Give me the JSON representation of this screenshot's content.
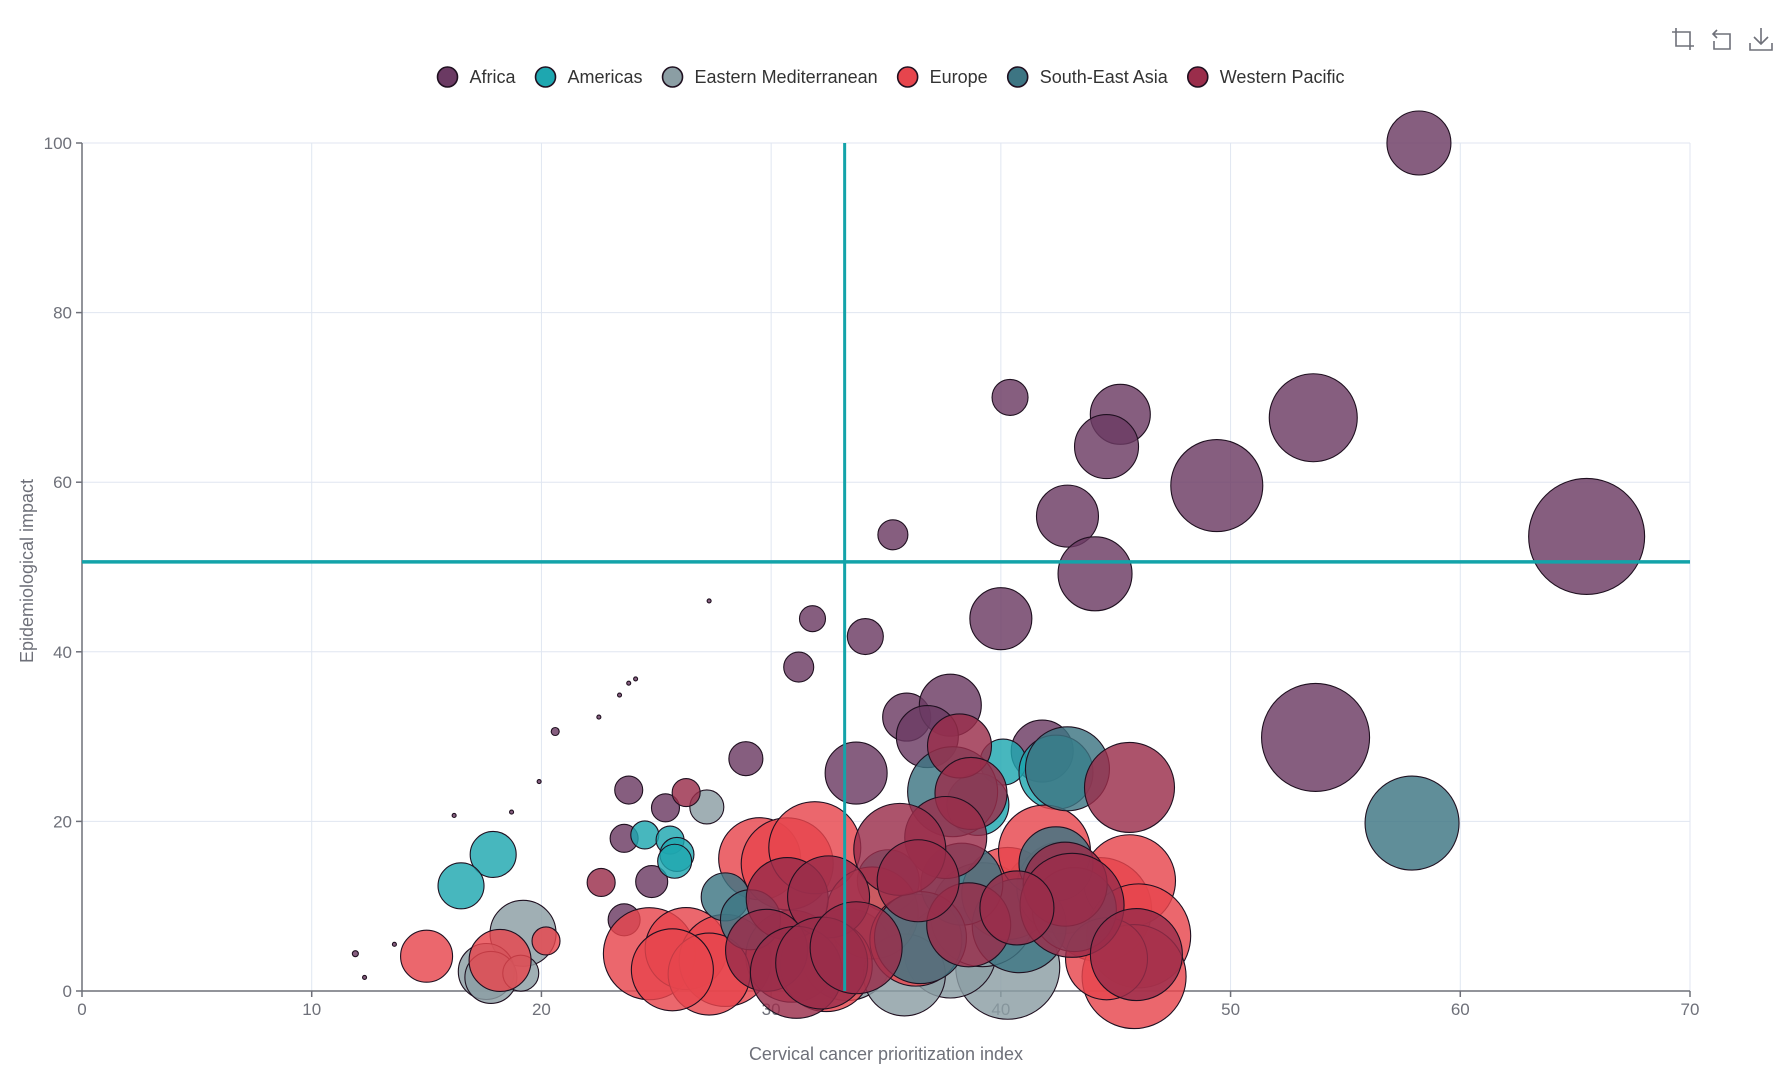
{
  "toolbox": {
    "zoom_icon": "zoom-icon",
    "restore_icon": "restore-icon",
    "download_icon": "download-icon"
  },
  "chart_data": {
    "type": "scatter",
    "xlabel": "Cervical cancer prioritization index",
    "ylabel": "Epidemiological impact",
    "xlim": [
      0,
      70
    ],
    "ylim": [
      0,
      100
    ],
    "xticks": [
      0,
      10,
      20,
      30,
      40,
      50,
      60,
      70
    ],
    "yticks": [
      0,
      20,
      40,
      60,
      80,
      100
    ],
    "grid": true,
    "legend_position": "top-center",
    "reference_lines": {
      "x": 33.2,
      "y": 50.6,
      "color": "#13a3a9"
    },
    "series": [
      {
        "name": "Africa",
        "color": "#6b3a63",
        "points": [
          [
            58.2,
            100,
            32
          ],
          [
            40.4,
            70,
            18
          ],
          [
            45.2,
            68,
            30
          ],
          [
            44.6,
            64.2,
            32
          ],
          [
            53.6,
            67.6,
            44
          ],
          [
            49.4,
            59.6,
            46
          ],
          [
            42.9,
            56,
            31
          ],
          [
            65.5,
            53.6,
            58
          ],
          [
            35.3,
            53.8,
            15
          ],
          [
            44.1,
            49.2,
            37
          ],
          [
            40.0,
            43.9,
            31
          ],
          [
            31.8,
            43.9,
            13
          ],
          [
            34.1,
            41.8,
            18
          ],
          [
            31.2,
            38.2,
            15
          ],
          [
            53.7,
            29.9,
            54
          ],
          [
            35.9,
            32.3,
            24
          ],
          [
            37.8,
            33.7,
            31
          ],
          [
            36.8,
            30,
            31
          ],
          [
            41.8,
            28.3,
            31
          ],
          [
            28.9,
            27.4,
            17
          ],
          [
            33.7,
            25.7,
            31
          ],
          [
            23.8,
            23.7,
            14
          ],
          [
            25.4,
            21.6,
            14
          ],
          [
            23.6,
            18,
            14
          ],
          [
            24.8,
            12.9,
            16
          ],
          [
            23.6,
            8.4,
            16
          ],
          [
            27.3,
            46.0,
            2
          ],
          [
            20.6,
            30.6,
            4
          ],
          [
            22.5,
            32.3,
            2
          ],
          [
            23.4,
            34.9,
            2
          ],
          [
            23.8,
            36.3,
            2
          ],
          [
            24.1,
            36.8,
            2
          ],
          [
            19.9,
            24.7,
            2
          ],
          [
            16.2,
            20.7,
            2
          ],
          [
            18.7,
            21.1,
            2
          ],
          [
            11.9,
            4.4,
            3
          ],
          [
            12.3,
            1.6,
            2
          ],
          [
            13.6,
            5.5,
            2
          ]
        ]
      },
      {
        "name": "Americas",
        "color": "#1ea7b0",
        "points": [
          [
            17.9,
            16.1,
            23
          ],
          [
            16.5,
            12.4,
            23
          ],
          [
            40.1,
            27.0,
            23
          ],
          [
            39.0,
            22.0,
            31
          ],
          [
            24.5,
            18.4,
            14
          ],
          [
            25.6,
            17.8,
            14
          ],
          [
            25.9,
            16.1,
            17
          ],
          [
            25.8,
            15.3,
            17
          ],
          [
            42.4,
            25.8,
            37
          ],
          [
            41.6,
            12.3,
            31
          ],
          [
            35.1,
            13.0,
            31
          ]
        ]
      },
      {
        "name": "Eastern Mediterranean",
        "color": "#8b9ea4",
        "points": [
          [
            19.2,
            6.8,
            33
          ],
          [
            17.6,
            2.3,
            28
          ],
          [
            17.8,
            1.6,
            26
          ],
          [
            19.1,
            2.1,
            18
          ],
          [
            27.2,
            21.7,
            17
          ],
          [
            40.3,
            2.8,
            52
          ],
          [
            37.8,
            4.6,
            46
          ],
          [
            39.2,
            9.0,
            52
          ],
          [
            33.3,
            4.3,
            46
          ],
          [
            35.8,
            1.9,
            41
          ]
        ]
      },
      {
        "name": "Europe",
        "color": "#e6454d",
        "points": [
          [
            15.0,
            4.1,
            26
          ],
          [
            18.2,
            3.6,
            31
          ],
          [
            20.2,
            5.9,
            14
          ],
          [
            24.7,
            4.4,
            46
          ],
          [
            26.3,
            5.0,
            41
          ],
          [
            28.0,
            3.6,
            46
          ],
          [
            29.5,
            15.6,
            41
          ],
          [
            30.7,
            15.0,
            46
          ],
          [
            31.9,
            16.9,
            46
          ],
          [
            34.4,
            9.2,
            46
          ],
          [
            36.3,
            6.0,
            46
          ],
          [
            40.3,
            11.5,
            46
          ],
          [
            42.7,
            12.2,
            46
          ],
          [
            44.3,
            9.6,
            52
          ],
          [
            45.6,
            13.0,
            46
          ],
          [
            46.0,
            6.5,
            52
          ],
          [
            45.8,
            1.7,
            52
          ],
          [
            44.6,
            3.8,
            41
          ],
          [
            41.9,
            16.5,
            46
          ],
          [
            30.9,
            4.1,
            46
          ],
          [
            32.4,
            3.0,
            46
          ],
          [
            27.3,
            2.0,
            41
          ],
          [
            25.7,
            2.5,
            41
          ]
        ]
      },
      {
        "name": "South-East Asia",
        "color": "#3d7583",
        "points": [
          [
            57.9,
            19.8,
            47
          ],
          [
            42.9,
            26.2,
            42
          ],
          [
            37.9,
            23.5,
            45
          ],
          [
            42.4,
            15.0,
            37
          ],
          [
            40.8,
            7.7,
            47
          ],
          [
            28.0,
            11.1,
            24
          ],
          [
            29.1,
            8.4,
            30
          ],
          [
            43.2,
            9.6,
            42
          ],
          [
            38.3,
            12.6,
            41
          ],
          [
            36.5,
            6.3,
            46
          ]
        ]
      },
      {
        "name": "Western Pacific",
        "color": "#9a2d4b",
        "points": [
          [
            22.6,
            12.8,
            14
          ],
          [
            26.3,
            23.4,
            14
          ],
          [
            45.6,
            24.0,
            45
          ],
          [
            38.2,
            28.9,
            32
          ],
          [
            38.7,
            23.3,
            36
          ],
          [
            37.6,
            18.1,
            41
          ],
          [
            35.6,
            16.7,
            46
          ],
          [
            30.7,
            10.9,
            41
          ],
          [
            32.5,
            11.1,
            41
          ],
          [
            29.8,
            4.8,
            41
          ],
          [
            31.1,
            2.2,
            46
          ],
          [
            32.2,
            3.3,
            46
          ],
          [
            33.7,
            5.1,
            46
          ],
          [
            38.6,
            7.8,
            42
          ],
          [
            42.8,
            12.6,
            42
          ],
          [
            43.1,
            10.1,
            52
          ],
          [
            45.9,
            4.3,
            46
          ],
          [
            36.4,
            13.0,
            41
          ],
          [
            40.7,
            9.8,
            37
          ]
        ]
      }
    ]
  }
}
